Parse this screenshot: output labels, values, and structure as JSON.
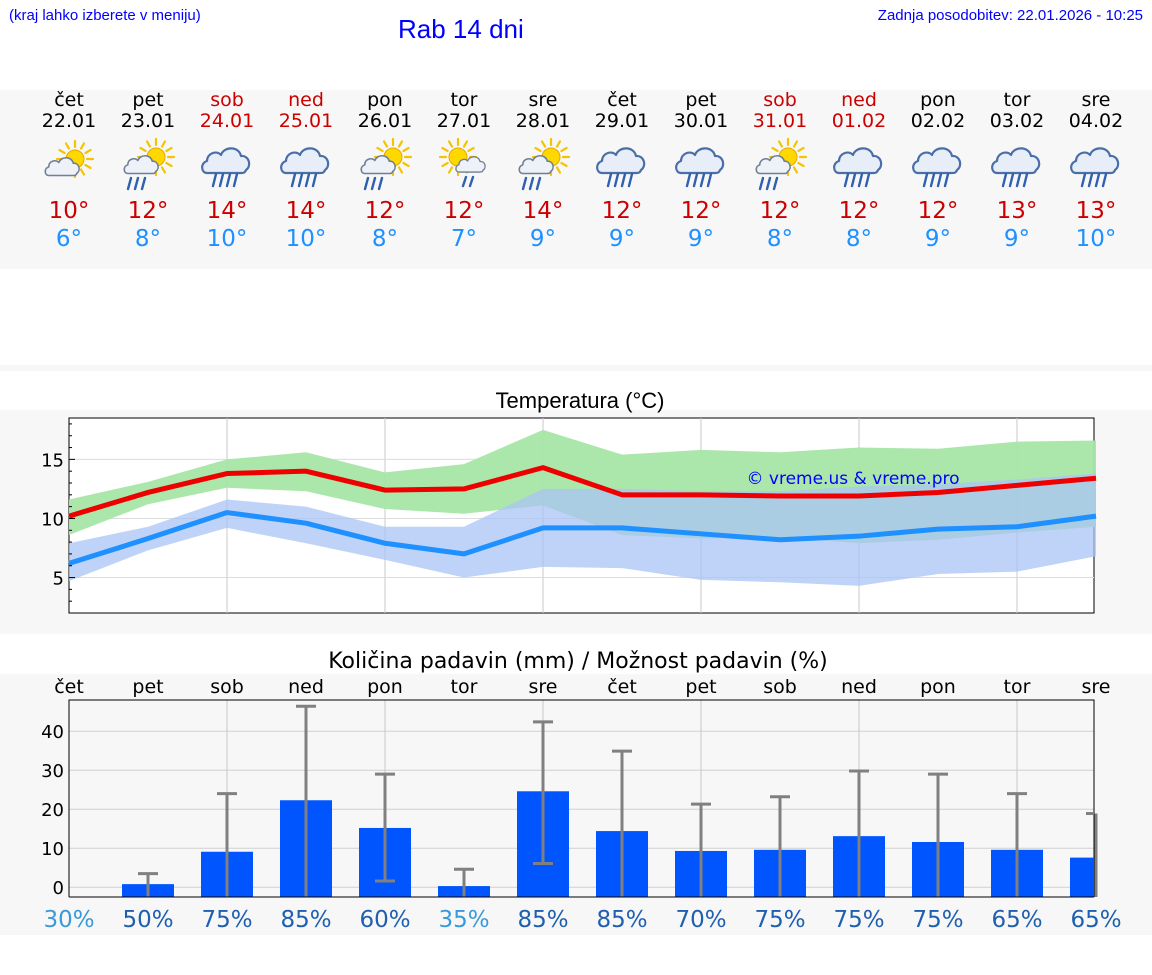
{
  "header": {
    "menu_hint": "(kraj lahko izberete v meniju)",
    "title": "Rab 14 dni",
    "last_update": "Zadnja posodobitev: 22.01.2026 - 10:25"
  },
  "colors": {
    "link": "#0000ff",
    "max_temp": "#cc0000",
    "min_temp": "#1e90ff",
    "max_band": "#a6e6a6",
    "min_band": "#aac4f5",
    "bar": "#0055ff",
    "whisker": "#808080"
  },
  "days": [
    {
      "name": "čet",
      "date": "22.01",
      "weekend": false,
      "icon": "sun-cloud-icon",
      "tmax": "10°",
      "tmin": "6°"
    },
    {
      "name": "pet",
      "date": "23.01",
      "weekend": false,
      "icon": "sun-cloud-rain-icon",
      "tmax": "12°",
      "tmin": "8°"
    },
    {
      "name": "sob",
      "date": "24.01",
      "weekend": true,
      "icon": "cloud-rain-icon",
      "tmax": "14°",
      "tmin": "10°"
    },
    {
      "name": "ned",
      "date": "25.01",
      "weekend": true,
      "icon": "cloud-rain-icon",
      "tmax": "14°",
      "tmin": "10°"
    },
    {
      "name": "pon",
      "date": "26.01",
      "weekend": false,
      "icon": "sun-cloud-rain-icon",
      "tmax": "12°",
      "tmin": "8°"
    },
    {
      "name": "tor",
      "date": "27.01",
      "weekend": false,
      "icon": "sun-cloud-light-rain-icon",
      "tmax": "12°",
      "tmin": "7°"
    },
    {
      "name": "sre",
      "date": "28.01",
      "weekend": false,
      "icon": "sun-cloud-rain-icon",
      "tmax": "14°",
      "tmin": "9°"
    },
    {
      "name": "čet",
      "date": "29.01",
      "weekend": false,
      "icon": "cloud-rain-icon",
      "tmax": "12°",
      "tmin": "9°"
    },
    {
      "name": "pet",
      "date": "30.01",
      "weekend": false,
      "icon": "cloud-rain-icon",
      "tmax": "12°",
      "tmin": "9°"
    },
    {
      "name": "sob",
      "date": "31.01",
      "weekend": true,
      "icon": "sun-cloud-rain-icon",
      "tmax": "12°",
      "tmin": "8°"
    },
    {
      "name": "ned",
      "date": "01.02",
      "weekend": true,
      "icon": "cloud-rain-icon",
      "tmax": "12°",
      "tmin": "8°"
    },
    {
      "name": "pon",
      "date": "02.02",
      "weekend": false,
      "icon": "cloud-rain-icon",
      "tmax": "12°",
      "tmin": "9°"
    },
    {
      "name": "tor",
      "date": "03.02",
      "weekend": false,
      "icon": "cloud-rain-icon",
      "tmax": "13°",
      "tmin": "9°"
    },
    {
      "name": "sre",
      "date": "04.02",
      "weekend": false,
      "icon": "cloud-rain-icon",
      "tmax": "13°",
      "tmin": "10°"
    }
  ],
  "chart_data": [
    {
      "type": "line",
      "title": "Temperatura (°C)",
      "watermark": "© vreme.us & vreme.pro",
      "x": [
        "22.01",
        "23.01",
        "24.01",
        "25.01",
        "26.01",
        "27.01",
        "28.01",
        "29.01",
        "30.01",
        "31.01",
        "01.02",
        "02.02",
        "03.02",
        "04.02"
      ],
      "ylim": [
        2,
        18.5
      ],
      "yticks": [
        5,
        10,
        15
      ],
      "grid": true,
      "series": [
        {
          "name": "max",
          "values": [
            10.2,
            12.2,
            13.8,
            14.0,
            12.4,
            12.5,
            14.3,
            12.0,
            12.0,
            11.9,
            11.9,
            12.2,
            12.8,
            13.4
          ],
          "band_low": [
            8.6,
            11.2,
            12.6,
            12.3,
            10.8,
            10.4,
            11.1,
            8.6,
            8.3,
            8.4,
            7.9,
            8.2,
            8.8,
            9.3
          ],
          "band_high": [
            11.6,
            13.1,
            15.0,
            15.6,
            13.9,
            14.6,
            17.5,
            15.4,
            15.8,
            15.6,
            16.0,
            15.9,
            16.5,
            16.6
          ]
        },
        {
          "name": "min",
          "values": [
            6.2,
            8.3,
            10.5,
            9.6,
            7.9,
            7.0,
            9.2,
            9.2,
            8.7,
            8.2,
            8.5,
            9.1,
            9.3,
            10.2
          ],
          "band_low": [
            4.7,
            7.3,
            9.2,
            7.9,
            6.5,
            5.0,
            5.9,
            5.8,
            4.8,
            4.6,
            4.3,
            5.3,
            5.5,
            6.8
          ],
          "band_high": [
            7.9,
            9.3,
            11.6,
            11.0,
            9.3,
            9.3,
            12.5,
            12.5,
            12.3,
            12.3,
            12.7,
            12.9,
            13.3,
            13.8
          ]
        }
      ]
    },
    {
      "type": "bar",
      "title": "Količina padavin (mm) / Možnost padavin (%)",
      "categories": [
        "čet",
        "pet",
        "sob",
        "ned",
        "pon",
        "tor",
        "sre",
        "čet",
        "pet",
        "sob",
        "ned",
        "pon",
        "tor",
        "sre"
      ],
      "values": [
        0,
        0.8,
        9.1,
        22.3,
        15.2,
        0.3,
        24.6,
        14.4,
        9.3,
        9.6,
        13.1,
        11.6,
        9.6,
        7.6
      ],
      "error_low": [
        0,
        0,
        0,
        0,
        1.6,
        0,
        6.1,
        0,
        0,
        0,
        0,
        0,
        0,
        0
      ],
      "error_high": [
        0,
        3.5,
        24.0,
        46.4,
        29.0,
        4.6,
        42.4,
        34.9,
        21.3,
        23.2,
        29.8,
        29.0,
        24.0,
        18.9
      ],
      "chance": [
        "30%",
        "50%",
        "75%",
        "85%",
        "60%",
        "35%",
        "85%",
        "85%",
        "70%",
        "75%",
        "75%",
        "75%",
        "65%",
        "65%"
      ],
      "chance_values": [
        30,
        50,
        75,
        85,
        60,
        35,
        85,
        85,
        70,
        75,
        75,
        75,
        65,
        65
      ],
      "ylim": [
        -2.5,
        48
      ],
      "yticks": [
        0,
        10,
        20,
        30,
        40
      ],
      "ylabels": [
        "0",
        "10",
        "20",
        "30",
        "40"
      ],
      "grid": true
    }
  ]
}
